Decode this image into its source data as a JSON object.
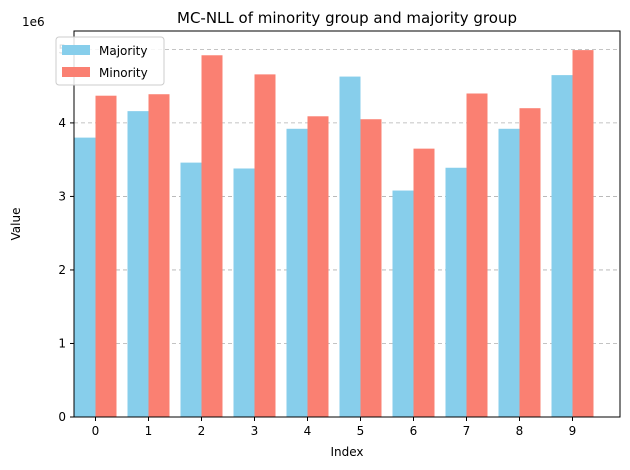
{
  "chart_data": {
    "type": "bar",
    "title": "MC-NLL of minority group and majority group",
    "xlabel": "Index",
    "ylabel": "Value",
    "scale_label": "1e6",
    "categories": [
      "0",
      "1",
      "2",
      "3",
      "4",
      "5",
      "6",
      "7",
      "8",
      "9"
    ],
    "ylim": [
      0,
      5.25
    ],
    "yticks": [
      0,
      1,
      2,
      3,
      4,
      5
    ],
    "ytick_labels": [
      "0",
      "1",
      "2",
      "3",
      "4",
      "5"
    ],
    "grid": "y-dashed",
    "legend_position": "top-left",
    "series": [
      {
        "name": "Majority",
        "color": "#87CEEB",
        "values": [
          3.8,
          4.16,
          3.46,
          3.38,
          3.92,
          4.63,
          3.08,
          3.39,
          3.92,
          4.65
        ]
      },
      {
        "name": "Minority",
        "color": "#FA8072",
        "values": [
          4.37,
          4.39,
          4.92,
          4.66,
          4.09,
          4.05,
          3.65,
          4.4,
          4.2,
          4.99
        ]
      }
    ]
  }
}
